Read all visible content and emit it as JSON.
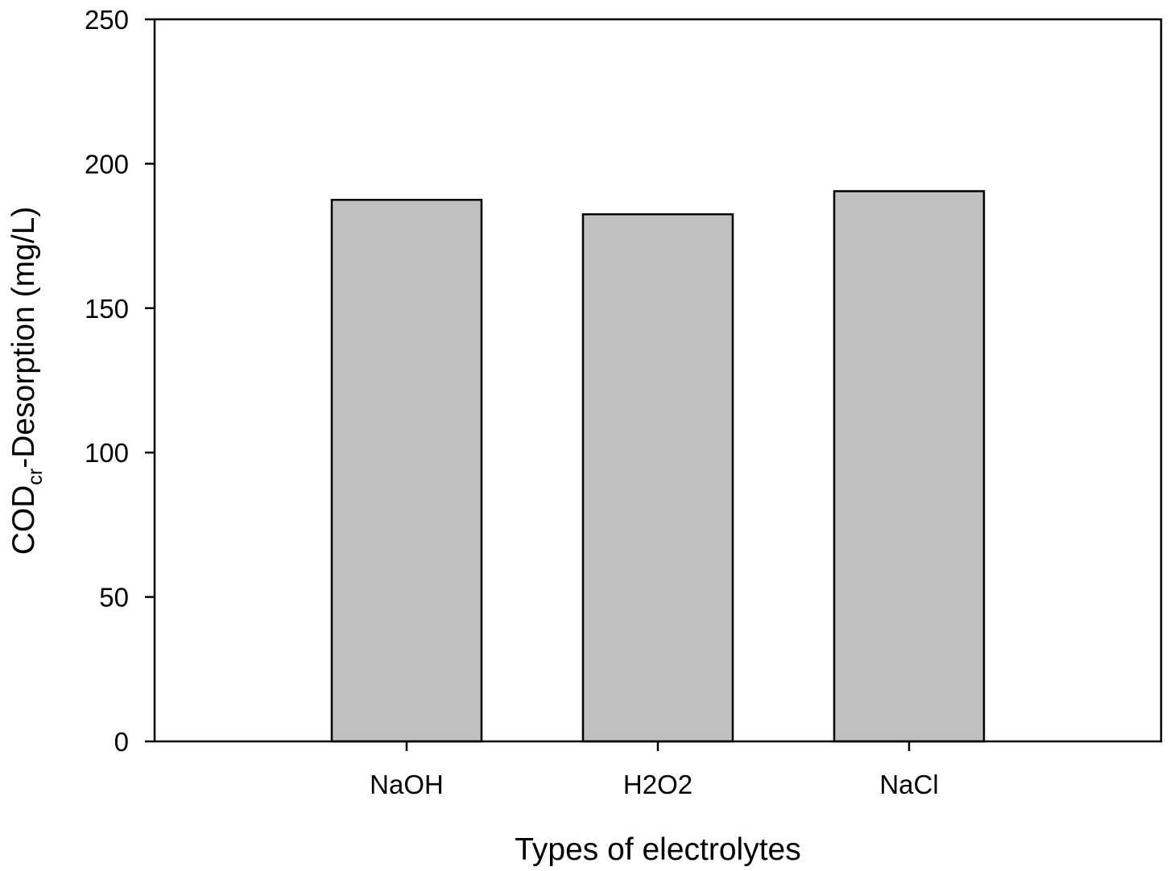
{
  "chart_data": {
    "type": "bar",
    "title": "",
    "xlabel": "Types of electrolytes",
    "ylabel": {
      "main": "COD",
      "subscript": "cr",
      "rest": "-Desorption (mg/L)"
    },
    "categories": [
      "NaOH",
      "H2O2",
      "NaCl"
    ],
    "series": [
      {
        "values": [
          187.5,
          182.5,
          190.5
        ]
      }
    ],
    "ylim": [
      0,
      250
    ],
    "yticks": [
      0,
      50,
      100,
      150,
      200,
      250
    ],
    "bar_color": "#c0c0c0",
    "grid": false,
    "legend": "none"
  }
}
